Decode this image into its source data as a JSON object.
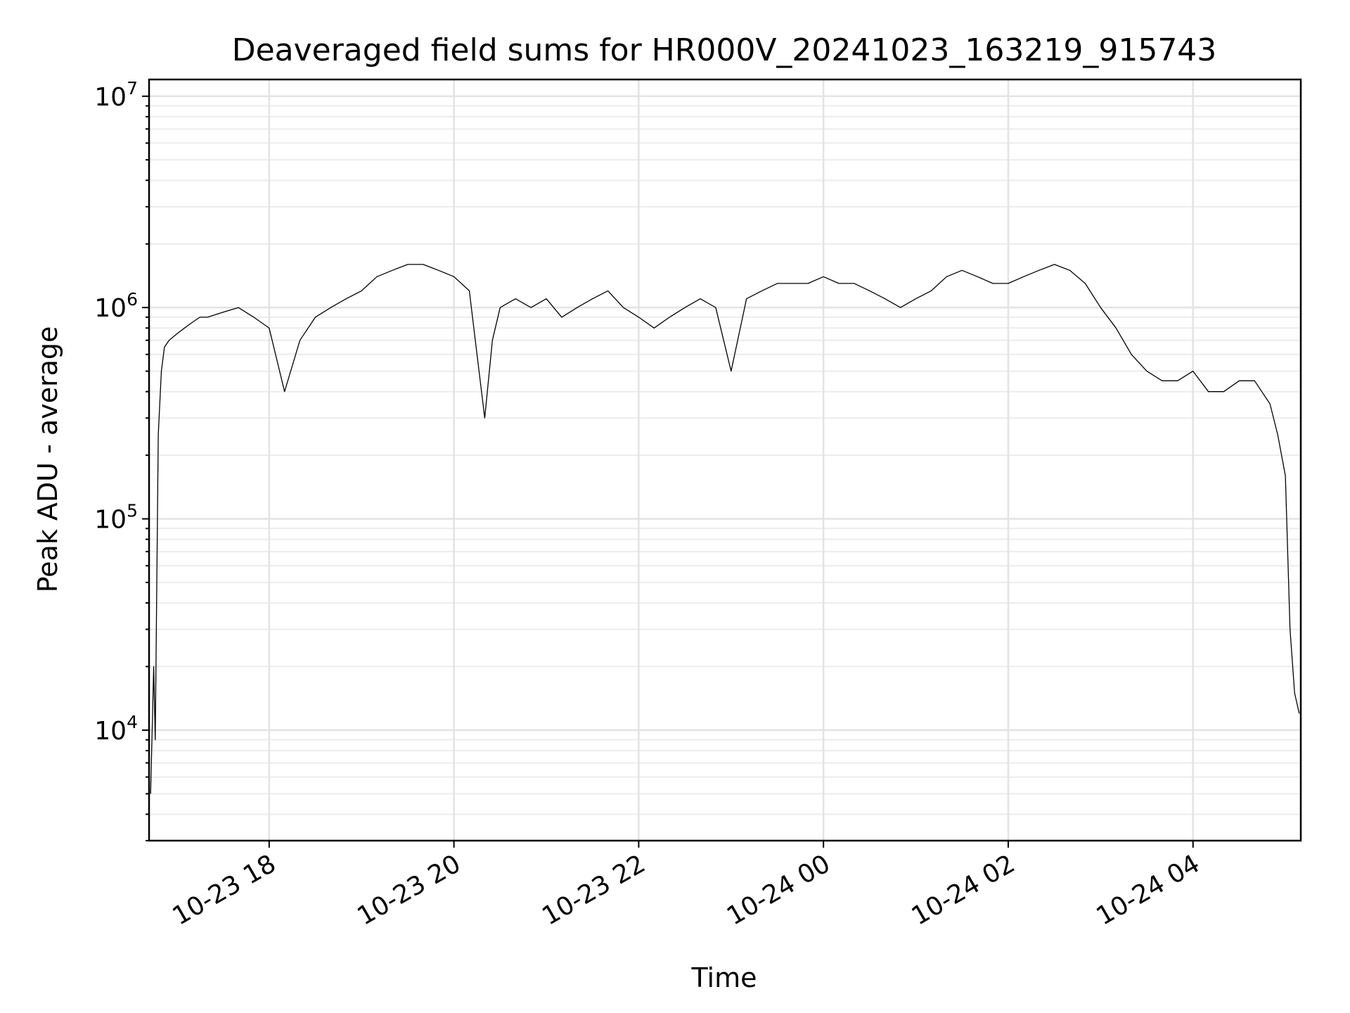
{
  "chart_data": {
    "type": "line",
    "title": "Deaveraged field sums for HR000V_20241023_163219_915743",
    "xlabel": "Time",
    "ylabel": "Peak ADU - average",
    "yscale": "log",
    "grid": true,
    "xlim": [
      "2024-10-23 16:42",
      "2024-10-24 05:10"
    ],
    "ylim": [
      3000,
      12000000
    ],
    "x_ticks": [
      {
        "t": "2024-10-23 18:00",
        "label": "10-23 18"
      },
      {
        "t": "2024-10-23 20:00",
        "label": "10-23 20"
      },
      {
        "t": "2024-10-23 22:00",
        "label": "10-23 22"
      },
      {
        "t": "2024-10-24 00:00",
        "label": "10-24 00"
      },
      {
        "t": "2024-10-24 02:00",
        "label": "10-24 02"
      },
      {
        "t": "2024-10-24 04:00",
        "label": "10-24 04"
      }
    ],
    "y_ticks": [
      {
        "value": 10000,
        "base": "10",
        "exp": "4"
      },
      {
        "value": 100000,
        "base": "10",
        "exp": "5"
      },
      {
        "value": 1000000,
        "base": "10",
        "exp": "6"
      },
      {
        "value": 10000000,
        "base": "10",
        "exp": "7"
      }
    ],
    "series": [
      {
        "color": "#000000",
        "x": [
          "2024-10-23 16:43",
          "2024-10-23 16:45",
          "2024-10-23 16:46",
          "2024-10-23 16:48",
          "2024-10-23 16:50",
          "2024-10-23 16:52",
          "2024-10-23 16:55",
          "2024-10-23 17:00",
          "2024-10-23 17:05",
          "2024-10-23 17:10",
          "2024-10-23 17:15",
          "2024-10-23 17:20",
          "2024-10-23 17:30",
          "2024-10-23 17:40",
          "2024-10-23 17:50",
          "2024-10-23 18:00",
          "2024-10-23 18:10",
          "2024-10-23 18:20",
          "2024-10-23 18:30",
          "2024-10-23 18:40",
          "2024-10-23 18:50",
          "2024-10-23 19:00",
          "2024-10-23 19:10",
          "2024-10-23 19:20",
          "2024-10-23 19:30",
          "2024-10-23 19:40",
          "2024-10-23 19:50",
          "2024-10-23 20:00",
          "2024-10-23 20:10",
          "2024-10-23 20:15",
          "2024-10-23 20:20",
          "2024-10-23 20:25",
          "2024-10-23 20:30",
          "2024-10-23 20:40",
          "2024-10-23 20:50",
          "2024-10-23 21:00",
          "2024-10-23 21:10",
          "2024-10-23 21:20",
          "2024-10-23 21:30",
          "2024-10-23 21:40",
          "2024-10-23 21:50",
          "2024-10-23 22:00",
          "2024-10-23 22:10",
          "2024-10-23 22:20",
          "2024-10-23 22:30",
          "2024-10-23 22:40",
          "2024-10-23 22:50",
          "2024-10-23 23:00",
          "2024-10-23 23:10",
          "2024-10-23 23:20",
          "2024-10-23 23:30",
          "2024-10-23 23:40",
          "2024-10-23 23:50",
          "2024-10-24 00:00",
          "2024-10-24 00:10",
          "2024-10-24 00:20",
          "2024-10-24 00:30",
          "2024-10-24 00:40",
          "2024-10-24 00:50",
          "2024-10-24 01:00",
          "2024-10-24 01:10",
          "2024-10-24 01:20",
          "2024-10-24 01:30",
          "2024-10-24 01:40",
          "2024-10-24 01:50",
          "2024-10-24 02:00",
          "2024-10-24 02:10",
          "2024-10-24 02:20",
          "2024-10-24 02:30",
          "2024-10-24 02:40",
          "2024-10-24 02:50",
          "2024-10-24 03:00",
          "2024-10-24 03:10",
          "2024-10-24 03:20",
          "2024-10-24 03:30",
          "2024-10-24 03:40",
          "2024-10-24 03:50",
          "2024-10-24 04:00",
          "2024-10-24 04:10",
          "2024-10-24 04:20",
          "2024-10-24 04:30",
          "2024-10-24 04:40",
          "2024-10-24 04:50",
          "2024-10-24 04:55",
          "2024-10-24 05:00",
          "2024-10-24 05:03",
          "2024-10-24 05:06",
          "2024-10-24 05:09"
        ],
        "y": [
          5000,
          20000,
          9000,
          250000,
          500000,
          650000,
          700000,
          750000,
          800000,
          850000,
          900000,
          900000,
          950000,
          1000000,
          900000,
          800000,
          400000,
          700000,
          900000,
          1000000,
          1100000,
          1200000,
          1400000,
          1500000,
          1600000,
          1600000,
          1500000,
          1400000,
          1200000,
          600000,
          300000,
          700000,
          1000000,
          1100000,
          1000000,
          1100000,
          900000,
          1000000,
          1100000,
          1200000,
          1000000,
          900000,
          800000,
          900000,
          1000000,
          1100000,
          1000000,
          500000,
          1100000,
          1200000,
          1300000,
          1300000,
          1300000,
          1400000,
          1300000,
          1300000,
          1200000,
          1100000,
          1000000,
          1100000,
          1200000,
          1400000,
          1500000,
          1400000,
          1300000,
          1300000,
          1400000,
          1500000,
          1600000,
          1500000,
          1300000,
          1000000,
          800000,
          600000,
          500000,
          450000,
          450000,
          500000,
          400000,
          400000,
          450000,
          450000,
          350000,
          250000,
          160000,
          30000,
          15000,
          12000
        ]
      }
    ]
  }
}
